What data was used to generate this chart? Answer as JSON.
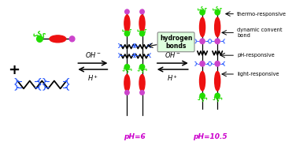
{
  "bg_color": "#ffffff",
  "green": "#22dd00",
  "red": "#ee1111",
  "purple": "#cc44cc",
  "blue": "#2255ff",
  "black": "#000000",
  "magenta_label": "#cc00cc",
  "fig_w": 3.76,
  "fig_h": 1.89,
  "dpi": 100,
  "label_ph6": "pH=6",
  "label_ph105": "pH=10.5",
  "label_hbonds_1": "hydrogen",
  "label_hbonds_2": "bonds",
  "label_thermo": "thermo-responsive",
  "label_dynamic_1": "dynamic convent",
  "label_dynamic_2": "bond",
  "label_ph_resp": "pH-responsive",
  "label_light": "light-responsive"
}
